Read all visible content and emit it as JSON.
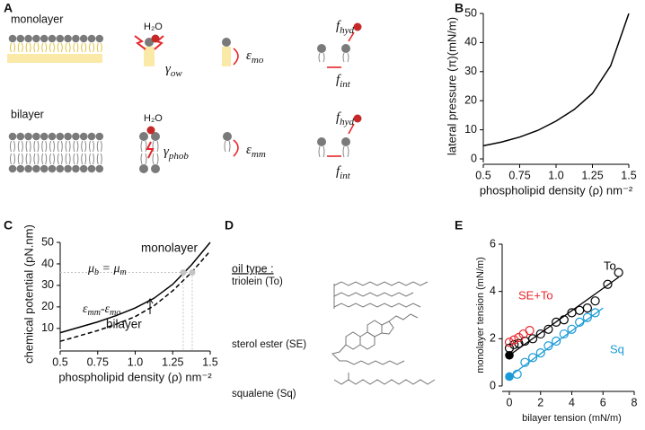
{
  "panel_a": {
    "label": "A",
    "rows": [
      "monolayer",
      "bilayer"
    ],
    "water": "H₂O",
    "gamma_ow": [
      "γ",
      "ow"
    ],
    "eps_mo": [
      "ε",
      "mo"
    ],
    "f_hyd": [
      "f",
      "hyd"
    ],
    "f_int": [
      "f",
      "int"
    ],
    "gamma_phob": [
      "γ",
      "phob"
    ],
    "eps_mm": [
      "ε",
      "mm"
    ]
  },
  "panel_d": {
    "label": "D",
    "heading": "oil type :",
    "oils": [
      "triolein (To)",
      "sterol ester (SE)",
      "squalene (Sq)"
    ]
  },
  "chart_data": [
    {
      "panel_label": "B",
      "type": "line",
      "xlabel": "phospholipid density (ρ) nm⁻²",
      "ylabel": "lateral pressure (π)(mN/m)",
      "x": [
        0.5,
        0.625,
        0.75,
        0.875,
        1.0,
        1.125,
        1.25,
        1.375,
        1.5
      ],
      "series": [
        {
          "color": "#000000",
          "dash": false,
          "values": [
            4.5,
            5.8,
            7.5,
            9.8,
            13,
            17,
            22.5,
            32,
            50
          ]
        }
      ],
      "xlim": [
        0.5,
        1.5
      ],
      "ylim": [
        0,
        50
      ],
      "xticks": [
        0.5,
        0.75,
        {
          "value": 1,
          "label": "1.0"
        },
        1.25,
        1.5
      ],
      "yticks": [
        0,
        10,
        20,
        30,
        40,
        50
      ]
    },
    {
      "panel_label": "C",
      "type": "line",
      "xlabel": "phospholipid density (ρ) nm⁻²",
      "ylabel": "chemical potential  (pN.nm)",
      "x": [
        0.5,
        0.625,
        0.75,
        0.875,
        1.0,
        1.125,
        1.25,
        1.375,
        1.5
      ],
      "series": [
        {
          "name": "monolayer",
          "color": "#000000",
          "dash": false,
          "values": [
            8,
            10.5,
            13,
            16,
            19.5,
            24,
            30.5,
            39.5,
            50
          ]
        },
        {
          "name": "bilayer",
          "color": "#000000",
          "dash": true,
          "values": [
            4,
            6.5,
            9,
            12,
            15.5,
            20.5,
            27.5,
            36,
            46
          ]
        }
      ],
      "points": {
        "x": [
          1.32,
          1.38
        ],
        "values": [
          36,
          36
        ],
        "color": "#c4c4c4"
      },
      "annotations": [
        {
          "parts": [
            [
              "μ",
              "b"
            ],
            [
              " = μ",
              "m"
            ]
          ]
        },
        {
          "parts": [
            [
              "ε",
              "mm"
            ],
            [
              "-ε",
              "mo"
            ]
          ]
        }
      ],
      "xlim": [
        0.5,
        1.5
      ],
      "ylim": [
        2,
        50
      ],
      "xticks": [
        0.5,
        0.75,
        {
          "value": 1,
          "label": "1.0"
        },
        1.25,
        1.5
      ],
      "yticks": [
        10,
        20,
        30,
        40,
        50
      ]
    },
    {
      "panel_label": "E",
      "type": "scatter",
      "xlabel": "bilayer tension (mN/m)",
      "ylabel": "monolayer tension (mN/m)",
      "series": [
        {
          "name": "To",
          "color": "#000000",
          "x": [
            0,
            0.3,
            0.6,
            1,
            1.5,
            2,
            2.5,
            3,
            3.5,
            4,
            4.5,
            5,
            5.5,
            6.3,
            7
          ],
          "values": [
            1.6,
            1.75,
            1.8,
            1.9,
            2,
            2.2,
            2.4,
            2.7,
            2.8,
            3.1,
            3.2,
            3.3,
            3.6,
            4.3,
            4.8
          ]
        },
        {
          "name": "SE+To",
          "color": "#e8262b",
          "x": [
            0,
            0.3,
            0.6,
            0.9,
            1.3
          ],
          "values": [
            1.85,
            1.95,
            2.05,
            2.2,
            2.35
          ]
        },
        {
          "name": "Sq",
          "color": "#1a9ad6",
          "x": [
            0.5,
            1,
            1.5,
            2,
            2.5,
            3,
            3.5,
            4,
            4.5,
            5,
            5.5
          ],
          "values": [
            0.5,
            1,
            1.2,
            1.4,
            1.7,
            1.9,
            2.2,
            2.4,
            2.7,
            2.9,
            3.1
          ]
        }
      ],
      "fit_lines": [
        {
          "color": "#000000",
          "x": [
            0,
            7
          ],
          "values": [
            1.3,
            4.6
          ]
        },
        {
          "color": "#1a9ad6",
          "x": [
            0,
            6
          ],
          "values": [
            0.4,
            3.3
          ]
        }
      ],
      "intercepts": {
        "x": [
          0,
          0
        ],
        "values": [
          1.3,
          0.4
        ],
        "colors": [
          "#000000",
          "#1a9ad6"
        ]
      },
      "xlim": [
        0,
        8
      ],
      "ylim": [
        0,
        6
      ],
      "xticks": [
        0,
        2,
        4,
        6,
        8
      ],
      "yticks": [
        0,
        2,
        4,
        6
      ]
    }
  ]
}
